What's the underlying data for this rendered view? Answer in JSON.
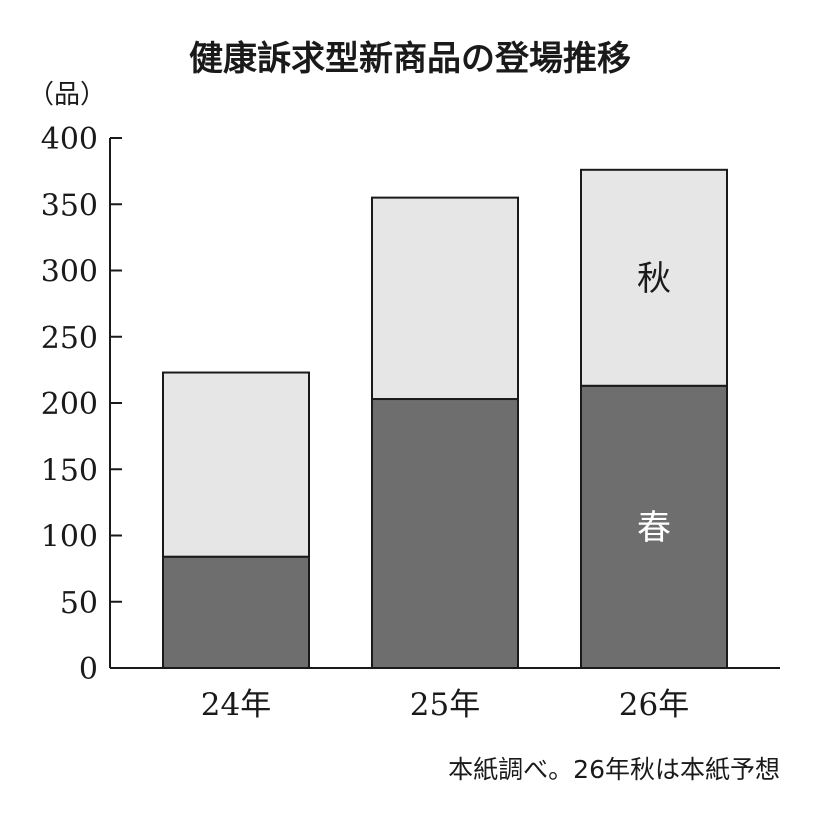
{
  "chart_data": {
    "type": "bar",
    "stacked": true,
    "title": "健康訴求型新商品の登場推移",
    "ylabel": "（品）",
    "ylim": [
      0,
      400
    ],
    "yticks": [
      0,
      50,
      100,
      150,
      200,
      250,
      300,
      350,
      400
    ],
    "categories": [
      "24年",
      "25年",
      "26年"
    ],
    "series": [
      {
        "name": "春",
        "values": [
          84,
          203,
          213
        ],
        "color": "#6e6e6e"
      },
      {
        "name": "秋",
        "values": [
          139,
          152,
          163
        ],
        "color": "#e6e6e6"
      }
    ],
    "totals": [
      223,
      355,
      376
    ],
    "grid": false,
    "source_note": "本紙調べ。26年秋は本紙予想"
  }
}
